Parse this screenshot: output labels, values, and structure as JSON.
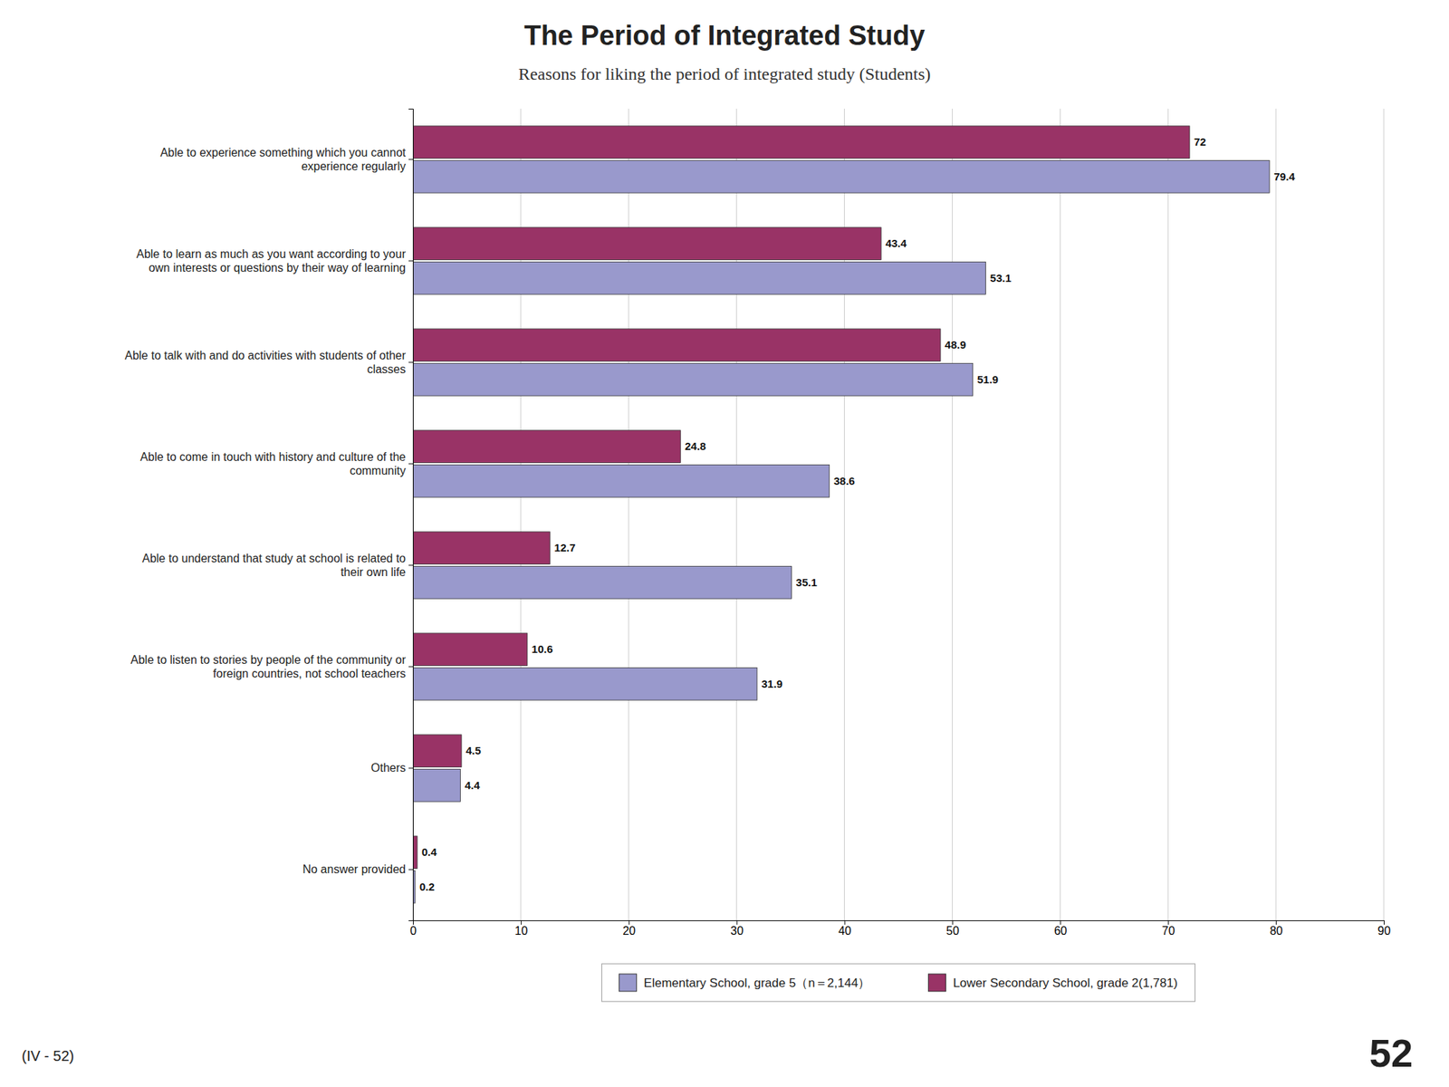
{
  "chart_data": {
    "type": "bar",
    "orientation": "horizontal",
    "title": "The Period of Integrated Study",
    "subtitle": "Reasons for liking the period of integrated study (Students)",
    "categories": [
      "Able to experience something which you cannot\nexperience regularly",
      "Able to learn as much as you want according to your\nown interests or questions by their way of learning",
      "Able to talk with and do activities with students of other\nclasses",
      "Able to come in touch with history and culture of the\ncommunity",
      "Able to understand that study at school is related to\ntheir own life",
      "Able to listen to stories by people of the community or\nforeign countries, not school teachers",
      "Others",
      "No answer provided"
    ],
    "series": [
      {
        "name": "Elementary School, grade 5（n＝2,144）",
        "color": "#9999CC",
        "values": [
          79.4,
          53.1,
          51.9,
          38.6,
          35.1,
          31.9,
          4.4,
          0.2
        ]
      },
      {
        "name": "Lower Secondary School, grade 2(1,781)",
        "color": "#993366",
        "values": [
          72,
          43.4,
          48.9,
          24.8,
          12.7,
          10.6,
          4.5,
          0.4
        ]
      }
    ],
    "xlim": [
      0,
      90
    ],
    "xticks": [
      0,
      10,
      20,
      30,
      40,
      50,
      60,
      70,
      80,
      90
    ],
    "grid": true,
    "data_labels": true,
    "legend": "bottom",
    "annotations": [
      "(IV - 52)",
      "52"
    ]
  }
}
